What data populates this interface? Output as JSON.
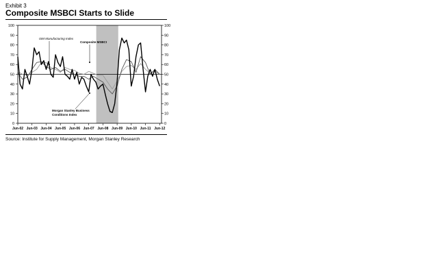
{
  "header": {
    "exhibit": "Exhibit 3",
    "title": "Composite MSBCI Starts to Slide"
  },
  "footer": {
    "source": "Source: Institute for Supply Management, Morgan Stanley Research"
  },
  "chart_data": {
    "type": "line",
    "title": "Composite MSBCI Starts to Slide",
    "xlabel": "",
    "ylabel": "",
    "ylim": [
      0,
      100
    ],
    "y_ticks": [
      0,
      10,
      20,
      30,
      40,
      50,
      60,
      70,
      80,
      90,
      100
    ],
    "x_range": [
      2002.42,
      2012.55
    ],
    "x_tick_labels": [
      "Jun-02",
      "Jun-03",
      "Jun-04",
      "Jun-05",
      "Jun-06",
      "Jun-07",
      "Jun-08",
      "Jun-09",
      "Jun-10",
      "Jun-11",
      "Jun-12"
    ],
    "x_tick_years": [
      2002.42,
      2003.42,
      2004.42,
      2005.42,
      2006.42,
      2007.42,
      2008.42,
      2009.42,
      2010.42,
      2011.42,
      2012.42
    ],
    "reference_line": 50,
    "recession_shading": [
      2007.95,
      2009.5
    ],
    "colors": {
      "business_conditions": "#000000",
      "ism": "#9a9a9a",
      "composite": "#555555",
      "shading": "#c0c0c0"
    },
    "annotations": [
      {
        "text": "ISM Manufacturing Index",
        "series": "ism"
      },
      {
        "text": "Composite MSBCI",
        "series": "composite"
      },
      {
        "text": "Morgan Stanley Business",
        "series": "business_conditions"
      },
      {
        "text": "Conditions Index",
        "series": "business_conditions"
      }
    ],
    "series": [
      {
        "name": "Morgan Stanley Business Conditions Index",
        "key": "business_conditions",
        "x": [
          2002.42,
          2002.58,
          2002.75,
          2002.92,
          2003.08,
          2003.25,
          2003.42,
          2003.58,
          2003.75,
          2003.92,
          2004.08,
          2004.25,
          2004.42,
          2004.58,
          2004.75,
          2004.92,
          2005.08,
          2005.25,
          2005.42,
          2005.58,
          2005.75,
          2005.92,
          2006.08,
          2006.25,
          2006.42,
          2006.58,
          2006.75,
          2006.92,
          2007.08,
          2007.25,
          2007.42,
          2007.58,
          2007.75,
          2007.92,
          2008.08,
          2008.25,
          2008.42,
          2008.58,
          2008.75,
          2008.92,
          2009.08,
          2009.25,
          2009.42,
          2009.58,
          2009.75,
          2009.92,
          2010.08,
          2010.25,
          2010.42,
          2010.58,
          2010.75,
          2010.92,
          2011.08,
          2011.25,
          2011.42,
          2011.58,
          2011.75,
          2011.92,
          2012.08,
          2012.25,
          2012.42
        ],
        "values": [
          68,
          40,
          35,
          55,
          48,
          40,
          55,
          77,
          70,
          73,
          60,
          64,
          55,
          63,
          50,
          47,
          70,
          62,
          58,
          68,
          50,
          48,
          45,
          55,
          45,
          52,
          40,
          47,
          45,
          38,
          32,
          50,
          45,
          42,
          35,
          38,
          40,
          30,
          20,
          12,
          11,
          20,
          42,
          75,
          87,
          82,
          85,
          75,
          38,
          48,
          68,
          80,
          82,
          55,
          32,
          48,
          55,
          48,
          55,
          45,
          38
        ]
      },
      {
        "name": "ISM Manufacturing Index",
        "key": "ism",
        "x": [
          2002.42,
          2002.75,
          2003.08,
          2003.42,
          2003.75,
          2004.08,
          2004.42,
          2004.75,
          2005.08,
          2005.42,
          2005.75,
          2006.08,
          2006.42,
          2006.75,
          2007.08,
          2007.42,
          2007.75,
          2008.08,
          2008.42,
          2008.75,
          2009.08,
          2009.42,
          2009.75,
          2010.08,
          2010.42,
          2010.75,
          2011.08,
          2011.42,
          2011.75,
          2012.08,
          2012.42
        ],
        "values": [
          53,
          50,
          49,
          52,
          55,
          62,
          62,
          57,
          55,
          52,
          57,
          55,
          54,
          51,
          50,
          53,
          51,
          49,
          49,
          42,
          35,
          43,
          53,
          58,
          59,
          55,
          61,
          55,
          51,
          53,
          50
        ]
      },
      {
        "name": "Composite MSBCI",
        "key": "composite",
        "x": [
          2002.42,
          2002.75,
          2003.08,
          2003.42,
          2003.75,
          2004.08,
          2004.42,
          2004.75,
          2005.08,
          2005.42,
          2005.75,
          2006.08,
          2006.42,
          2006.75,
          2007.08,
          2007.42,
          2007.75,
          2008.08,
          2008.42,
          2008.75,
          2009.08,
          2009.42,
          2009.75,
          2010.08,
          2010.42,
          2010.75,
          2011.08,
          2011.42,
          2011.75,
          2012.08,
          2012.42
        ],
        "values": [
          52,
          45,
          47,
          55,
          62,
          63,
          58,
          55,
          57,
          53,
          55,
          52,
          50,
          48,
          48,
          45,
          48,
          45,
          42,
          35,
          30,
          38,
          55,
          65,
          63,
          52,
          68,
          62,
          50,
          55,
          50
        ]
      }
    ]
  }
}
